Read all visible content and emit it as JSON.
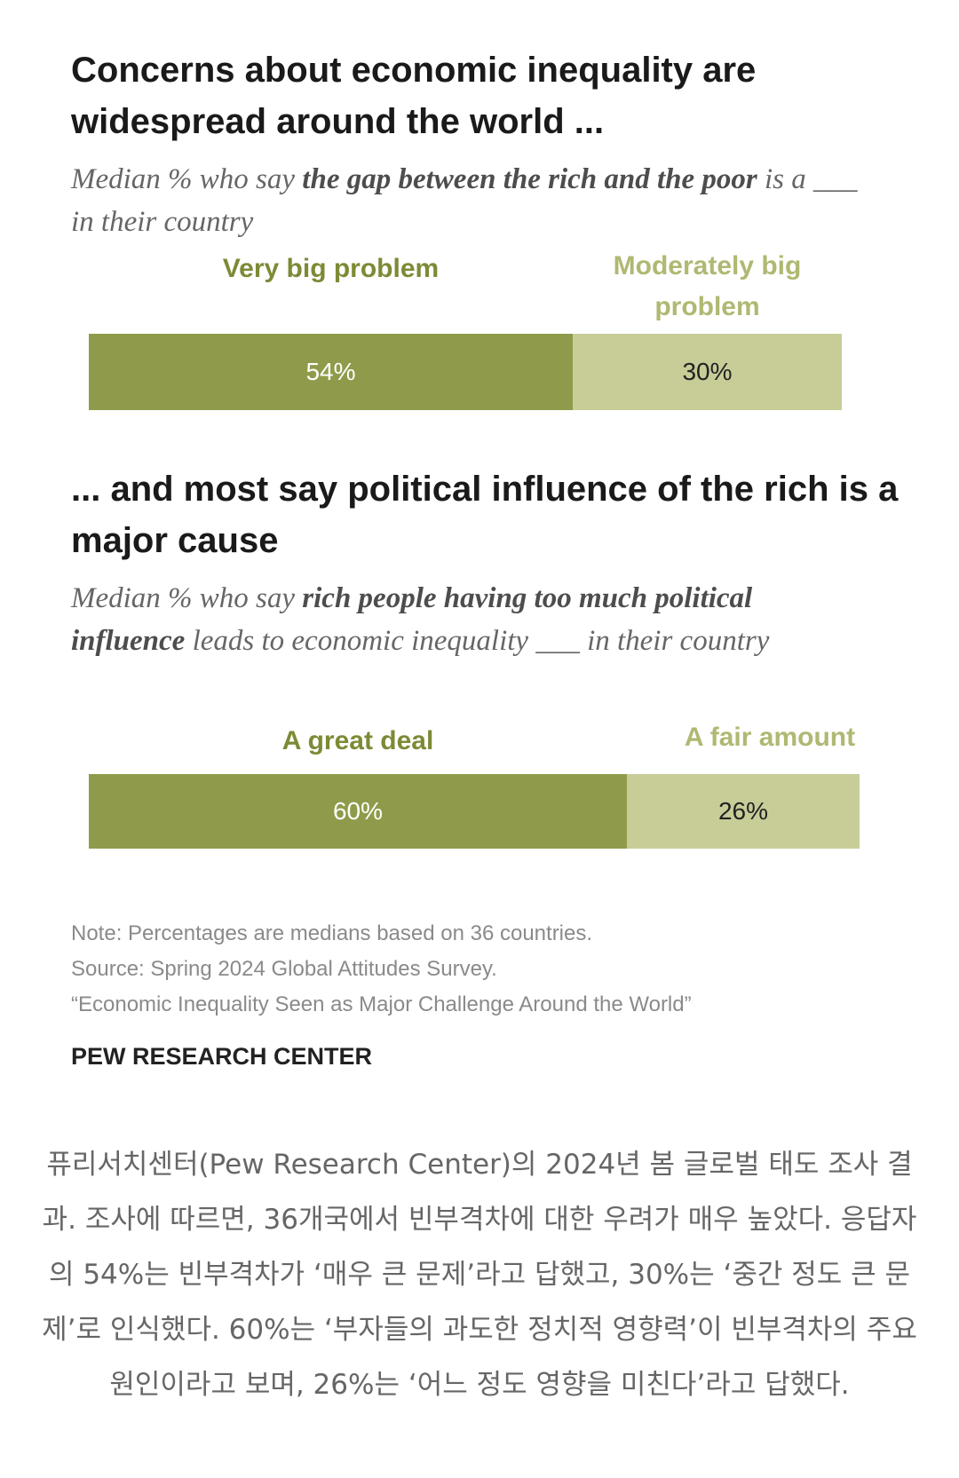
{
  "chart_data": [
    {
      "type": "bar",
      "orientation": "horizontal-stacked",
      "title": "Concerns about economic inequality are widespread around the world ...",
      "subtitle": {
        "pre": "Median % who say ",
        "bold": "the gap between the rich and the poor",
        "post": " is a ___ in their country"
      },
      "series": [
        {
          "name": "Very big problem",
          "value": 54,
          "label": "54%",
          "color": "#8f9b4a"
        },
        {
          "name": "Moderately big problem",
          "value": 30,
          "label": "30%",
          "color": "#c8cd98"
        }
      ]
    },
    {
      "type": "bar",
      "orientation": "horizontal-stacked",
      "title": "... and most say political influence of the rich is a major cause",
      "subtitle": {
        "pre": "Median % who say ",
        "bold": "rich people having too much political influence",
        "post": " leads to economic inequality ___ in their country"
      },
      "series": [
        {
          "name": "A great deal",
          "value": 60,
          "label": "60%",
          "color": "#8f9b4a"
        },
        {
          "name": "A fair amount",
          "value": 26,
          "label": "26%",
          "color": "#c8cd98"
        }
      ]
    }
  ],
  "note": "Note: Percentages are medians based on 36 countries.",
  "source": "Source: Spring 2024 Global Attitudes Survey.",
  "report": "“Economic Inequality Seen as Major Challenge Around the World”",
  "brand": "PEW RESEARCH CENTER",
  "caption": "퓨리서치센터(Pew Research Center)의 2024년 봄 글로벌 태도 조사 결과. 조사에 따르면, 36개국에서 빈부격차에 대한 우려가 매우 높았다. 응답자의 54%는 빈부격차가 ‘매우 큰 문제’라고 답했고, 30%는 ‘중간 정도 큰 문제’로 인식했다. 60%는 ‘부자들의 과도한 정치적 영향력’이 빈부격차의 주요 원인이라고 보며, 26%는 ‘어느 정도 영향을 미친다’라고 답했다.",
  "colors": {
    "dark": "#8f9b4a",
    "light": "#c8cd98",
    "dark_label": "#7d8a36",
    "light_label": "#b0b872"
  }
}
